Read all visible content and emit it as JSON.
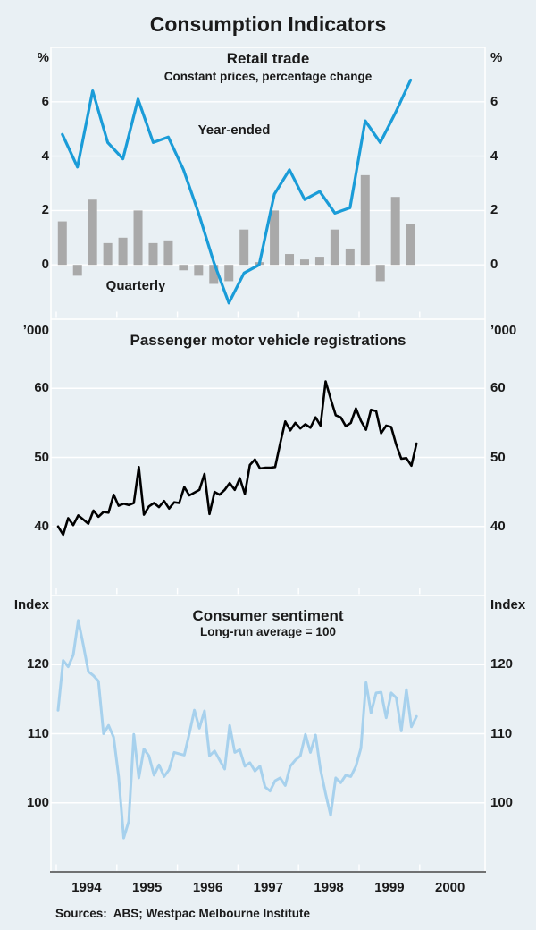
{
  "title": "Consumption Indicators",
  "source_note": "Sources:  ABS; Westpac Melbourne Institute",
  "colors": {
    "background": "#e9f0f4",
    "grid": "#ffffff",
    "axis": "#454545",
    "text": "#1a1a1a",
    "retail_line": "#1a9cd8",
    "quarterly_bar": "#a9a9a9",
    "registrations_line": "#000000",
    "sentiment_line": "#a7d1ed"
  },
  "x_axis": {
    "year_labels": [
      "1994",
      "1995",
      "1996",
      "1997",
      "1998",
      "1999",
      "2000"
    ]
  },
  "chart_data": [
    {
      "type": "line+bar",
      "title": "Retail trade",
      "subtitle": "Constant prices, percentage change",
      "unit": "%",
      "ylim": [
        -2,
        8
      ],
      "yticks": [
        0,
        2,
        4,
        6
      ],
      "x_start": 1994.1,
      "x_step": 0.25,
      "series": [
        {
          "name": "Year-ended",
          "type": "line",
          "color_key": "retail_line",
          "values": [
            4.8,
            3.6,
            6.4,
            4.5,
            3.9,
            6.1,
            4.5,
            4.7,
            3.5,
            1.9,
            0.1,
            -1.4,
            -0.3,
            0.0,
            2.6,
            3.5,
            2.4,
            2.7,
            1.9,
            2.1,
            5.3,
            4.5,
            5.6,
            6.8
          ]
        },
        {
          "name": "Quarterly",
          "type": "bar",
          "color_key": "quarterly_bar",
          "values": [
            1.6,
            -0.4,
            2.4,
            0.8,
            1.0,
            2.0,
            0.8,
            0.9,
            -0.2,
            -0.4,
            -0.7,
            -0.6,
            1.3,
            0.1,
            2.0,
            0.4,
            0.2,
            0.3,
            1.3,
            0.6,
            3.3,
            -0.6,
            2.5,
            1.5
          ]
        }
      ]
    },
    {
      "type": "line",
      "title": "Passenger motor vehicle registrations",
      "subtitle": "",
      "unit": "’000",
      "ylim": [
        30,
        70
      ],
      "yticks": [
        40,
        50,
        60
      ],
      "x_start": 1994.03,
      "x_step": 0.083333,
      "series": [
        {
          "name": "Passenger motor vehicle registrations",
          "type": "line",
          "color_key": "registrations_line",
          "values": [
            40.0,
            38.8,
            41.2,
            40.2,
            41.6,
            41.0,
            40.4,
            42.3,
            41.4,
            42.1,
            42.0,
            44.6,
            43.0,
            43.3,
            43.1,
            43.4,
            48.6,
            41.7,
            42.9,
            43.4,
            42.8,
            43.7,
            42.6,
            43.5,
            43.4,
            45.7,
            44.5,
            44.9,
            45.3,
            47.6,
            41.8,
            45.0,
            44.6,
            45.3,
            46.3,
            45.3,
            47.0,
            44.7,
            48.9,
            49.7,
            48.4,
            48.5,
            48.5,
            48.6,
            52.0,
            55.2,
            53.9,
            55.0,
            54.2,
            54.8,
            54.3,
            55.8,
            54.6,
            61.0,
            58.5,
            56.1,
            55.8,
            54.5,
            55.0,
            57.1,
            55.3,
            54.0,
            56.9,
            56.7,
            53.5,
            54.6,
            54.4,
            51.8,
            49.8,
            49.9,
            48.8,
            52.0
          ]
        }
      ]
    },
    {
      "type": "line",
      "title": "Consumer sentiment",
      "subtitle": "Long-run average = 100",
      "unit": "Index",
      "ylim": [
        90,
        130
      ],
      "yticks": [
        100,
        110,
        120
      ],
      "x_start": 1994.03,
      "x_step": 0.083333,
      "series": [
        {
          "name": "Consumer sentiment",
          "type": "line",
          "color_key": "sentiment_line",
          "values": [
            113.4,
            120.6,
            119.7,
            121.4,
            126.4,
            122.8,
            119.0,
            118.4,
            117.6,
            110.0,
            111.2,
            109.5,
            103.8,
            94.9,
            97.3,
            109.9,
            103.6,
            107.8,
            106.8,
            104.0,
            105.5,
            103.8,
            104.8,
            107.3,
            107.1,
            106.9,
            110.0,
            113.4,
            110.8,
            113.3,
            106.8,
            107.5,
            106.2,
            104.9,
            111.2,
            107.3,
            107.7,
            105.3,
            105.8,
            104.6,
            105.3,
            102.3,
            101.7,
            103.2,
            103.6,
            102.5,
            105.3,
            106.2,
            106.8,
            109.9,
            107.3,
            109.8,
            104.8,
            101.3,
            98.2,
            103.6,
            102.9,
            104.0,
            103.8,
            105.3,
            107.9,
            117.4,
            113.0,
            115.9,
            116.0,
            112.3,
            115.9,
            115.2,
            110.4,
            116.4,
            111.0,
            112.5
          ]
        }
      ]
    }
  ]
}
